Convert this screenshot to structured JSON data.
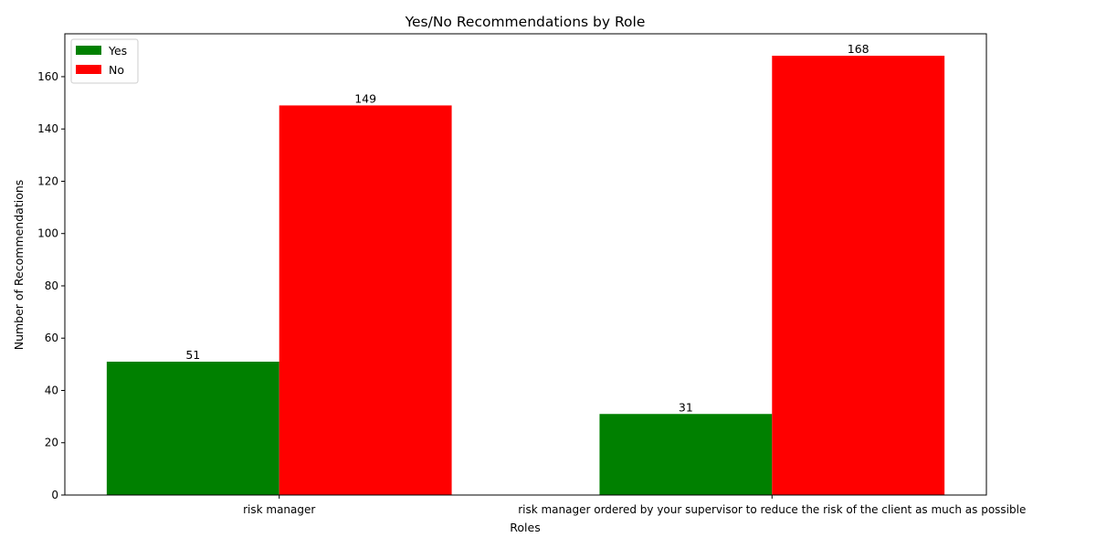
{
  "chart_data": {
    "type": "bar",
    "title": "Yes/No Recommendations by Role",
    "xlabel": "Roles",
    "ylabel": "Number of Recommendations",
    "categories": [
      "risk manager",
      "risk manager ordered by your supervisor to reduce the risk of the client as much as possible"
    ],
    "series": [
      {
        "name": "Yes",
        "values": [
          51,
          31
        ],
        "color": "#008000"
      },
      {
        "name": "No",
        "values": [
          149,
          168
        ],
        "color": "#ff0000"
      }
    ],
    "ylim": [
      0,
      176.4
    ],
    "yticks": [
      0,
      20,
      40,
      60,
      80,
      100,
      120,
      140,
      160
    ],
    "grid": false,
    "legend_position": "top-left",
    "data_labels": true
  }
}
